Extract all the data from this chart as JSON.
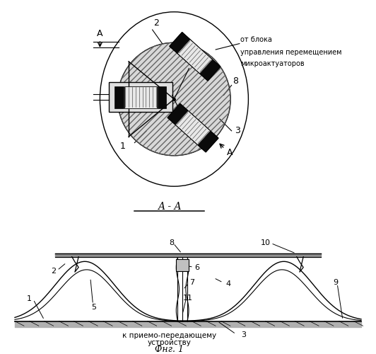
{
  "bg_color": "#ffffff",
  "line_color": "#000000",
  "label_from_block": "от блока",
  "label_control": "управления перемещением",
  "label_micro": "микроактуаторов",
  "section_label": "A - A",
  "fig_label": "Фнг. 1",
  "bottom_label_1": "к приемо-передающему",
  "bottom_label_2": "устройству"
}
